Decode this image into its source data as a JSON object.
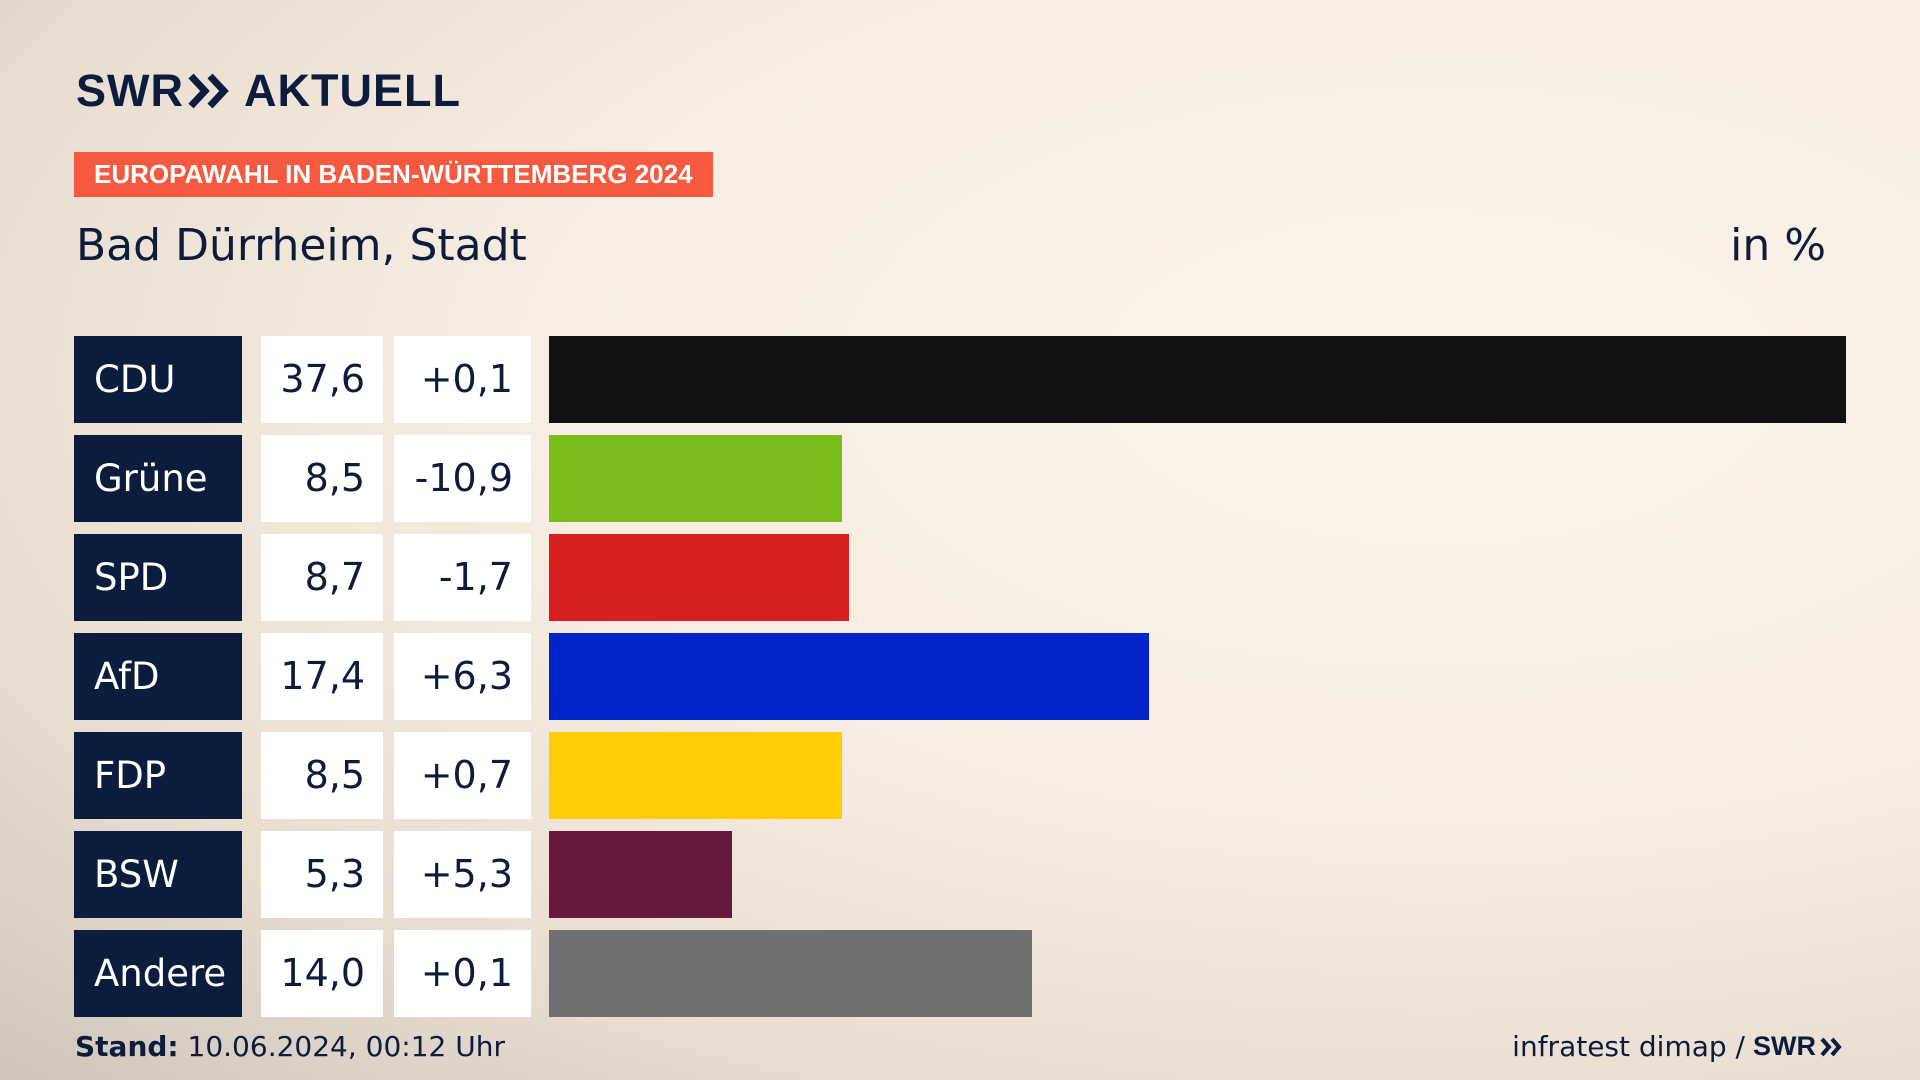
{
  "header": {
    "logo_left": "SWR",
    "logo_right": "AKTUELL",
    "logo_icon": "double-chevron-icon",
    "banner": "EUROPAWAHL IN BADEN-WÜRTTEMBERG 2024",
    "subtitle": "Bad Dürrheim, Stadt",
    "unit": "in %"
  },
  "chart_data": {
    "type": "bar",
    "orientation": "horizontal",
    "title": "Bad Dürrheim, Stadt",
    "unit": "in %",
    "categories": [
      "CDU",
      "Grüne",
      "SPD",
      "AfD",
      "FDP",
      "BSW",
      "Andere"
    ],
    "values": [
      37.6,
      8.5,
      8.7,
      17.4,
      8.5,
      5.3,
      14.0
    ],
    "rows": [
      {
        "party": "CDU",
        "value": 37.6,
        "value_label": "37,6",
        "diff_label": "+0,1",
        "color": "#121212"
      },
      {
        "party": "Grüne",
        "value": 8.5,
        "value_label": "8,5",
        "diff_label": "-10,9",
        "color": "#7bbd1c"
      },
      {
        "party": "SPD",
        "value": 8.7,
        "value_label": "8,7",
        "diff_label": "-1,7",
        "color": "#d71f1f"
      },
      {
        "party": "AfD",
        "value": 17.4,
        "value_label": "17,4",
        "diff_label": "+6,3",
        "color": "#0024c8"
      },
      {
        "party": "FDP",
        "value": 8.5,
        "value_label": "8,5",
        "diff_label": "+0,7",
        "color": "#ffcd05"
      },
      {
        "party": "BSW",
        "value": 5.3,
        "value_label": "5,3",
        "diff_label": "+5,3",
        "color": "#66183d"
      },
      {
        "party": "Andere",
        "value": 14.0,
        "value_label": "14,0",
        "diff_label": "+0,1",
        "color": "#6f7072"
      }
    ],
    "xlim": [
      0,
      37.6
    ]
  },
  "footer": {
    "stand_label": "Stand:",
    "stand_value": "10.06.2024, 00:12 Uhr",
    "source": "infratest dimap /",
    "source_logo": "SWR"
  }
}
